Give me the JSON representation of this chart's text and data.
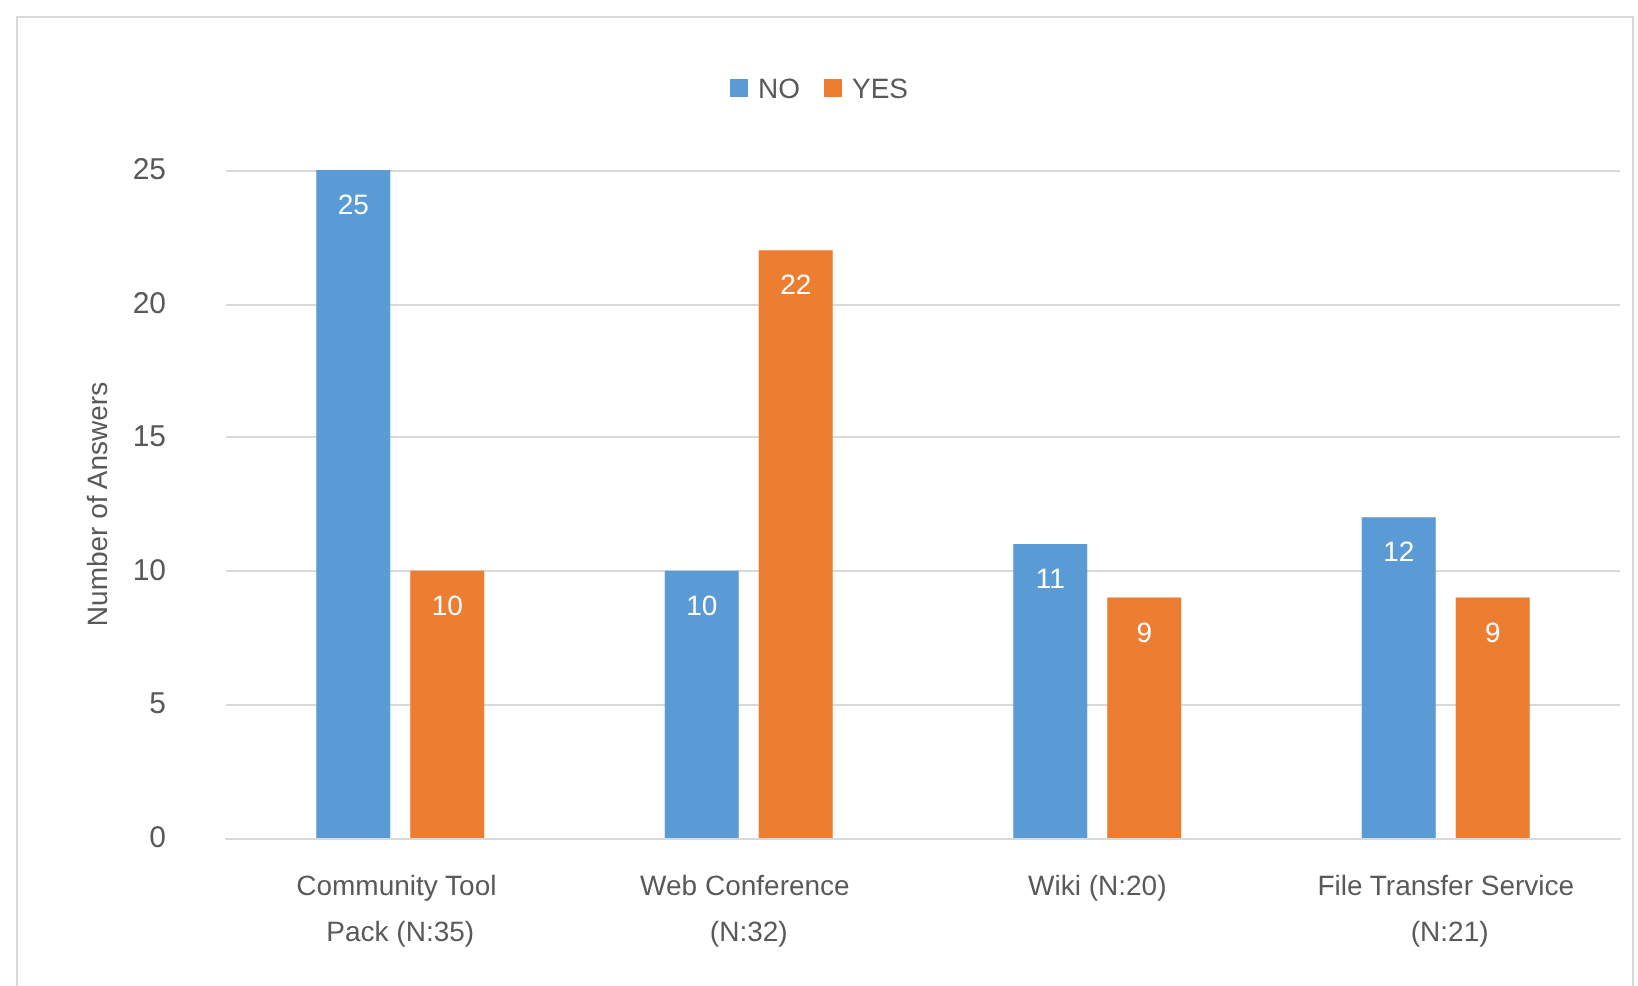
{
  "chart_data": {
    "type": "bar",
    "categories": [
      "Community Tool Pack (N:35)",
      "Web Conference (N:32)",
      "Wiki (N:20)",
      "File Transfer Service (N:21)"
    ],
    "series": [
      {
        "name": "NO",
        "color": "#5b9bd5",
        "values": [
          25,
          10,
          11,
          12
        ]
      },
      {
        "name": "YES",
        "color": "#ed7d31",
        "values": [
          10,
          22,
          9,
          9
        ]
      }
    ],
    "ylabel": "Number of Answers",
    "ylim": [
      0,
      25
    ],
    "yticks": [
      0,
      5,
      10,
      15,
      20,
      25
    ],
    "grid": "y",
    "legend": "top",
    "data_labels": true
  }
}
